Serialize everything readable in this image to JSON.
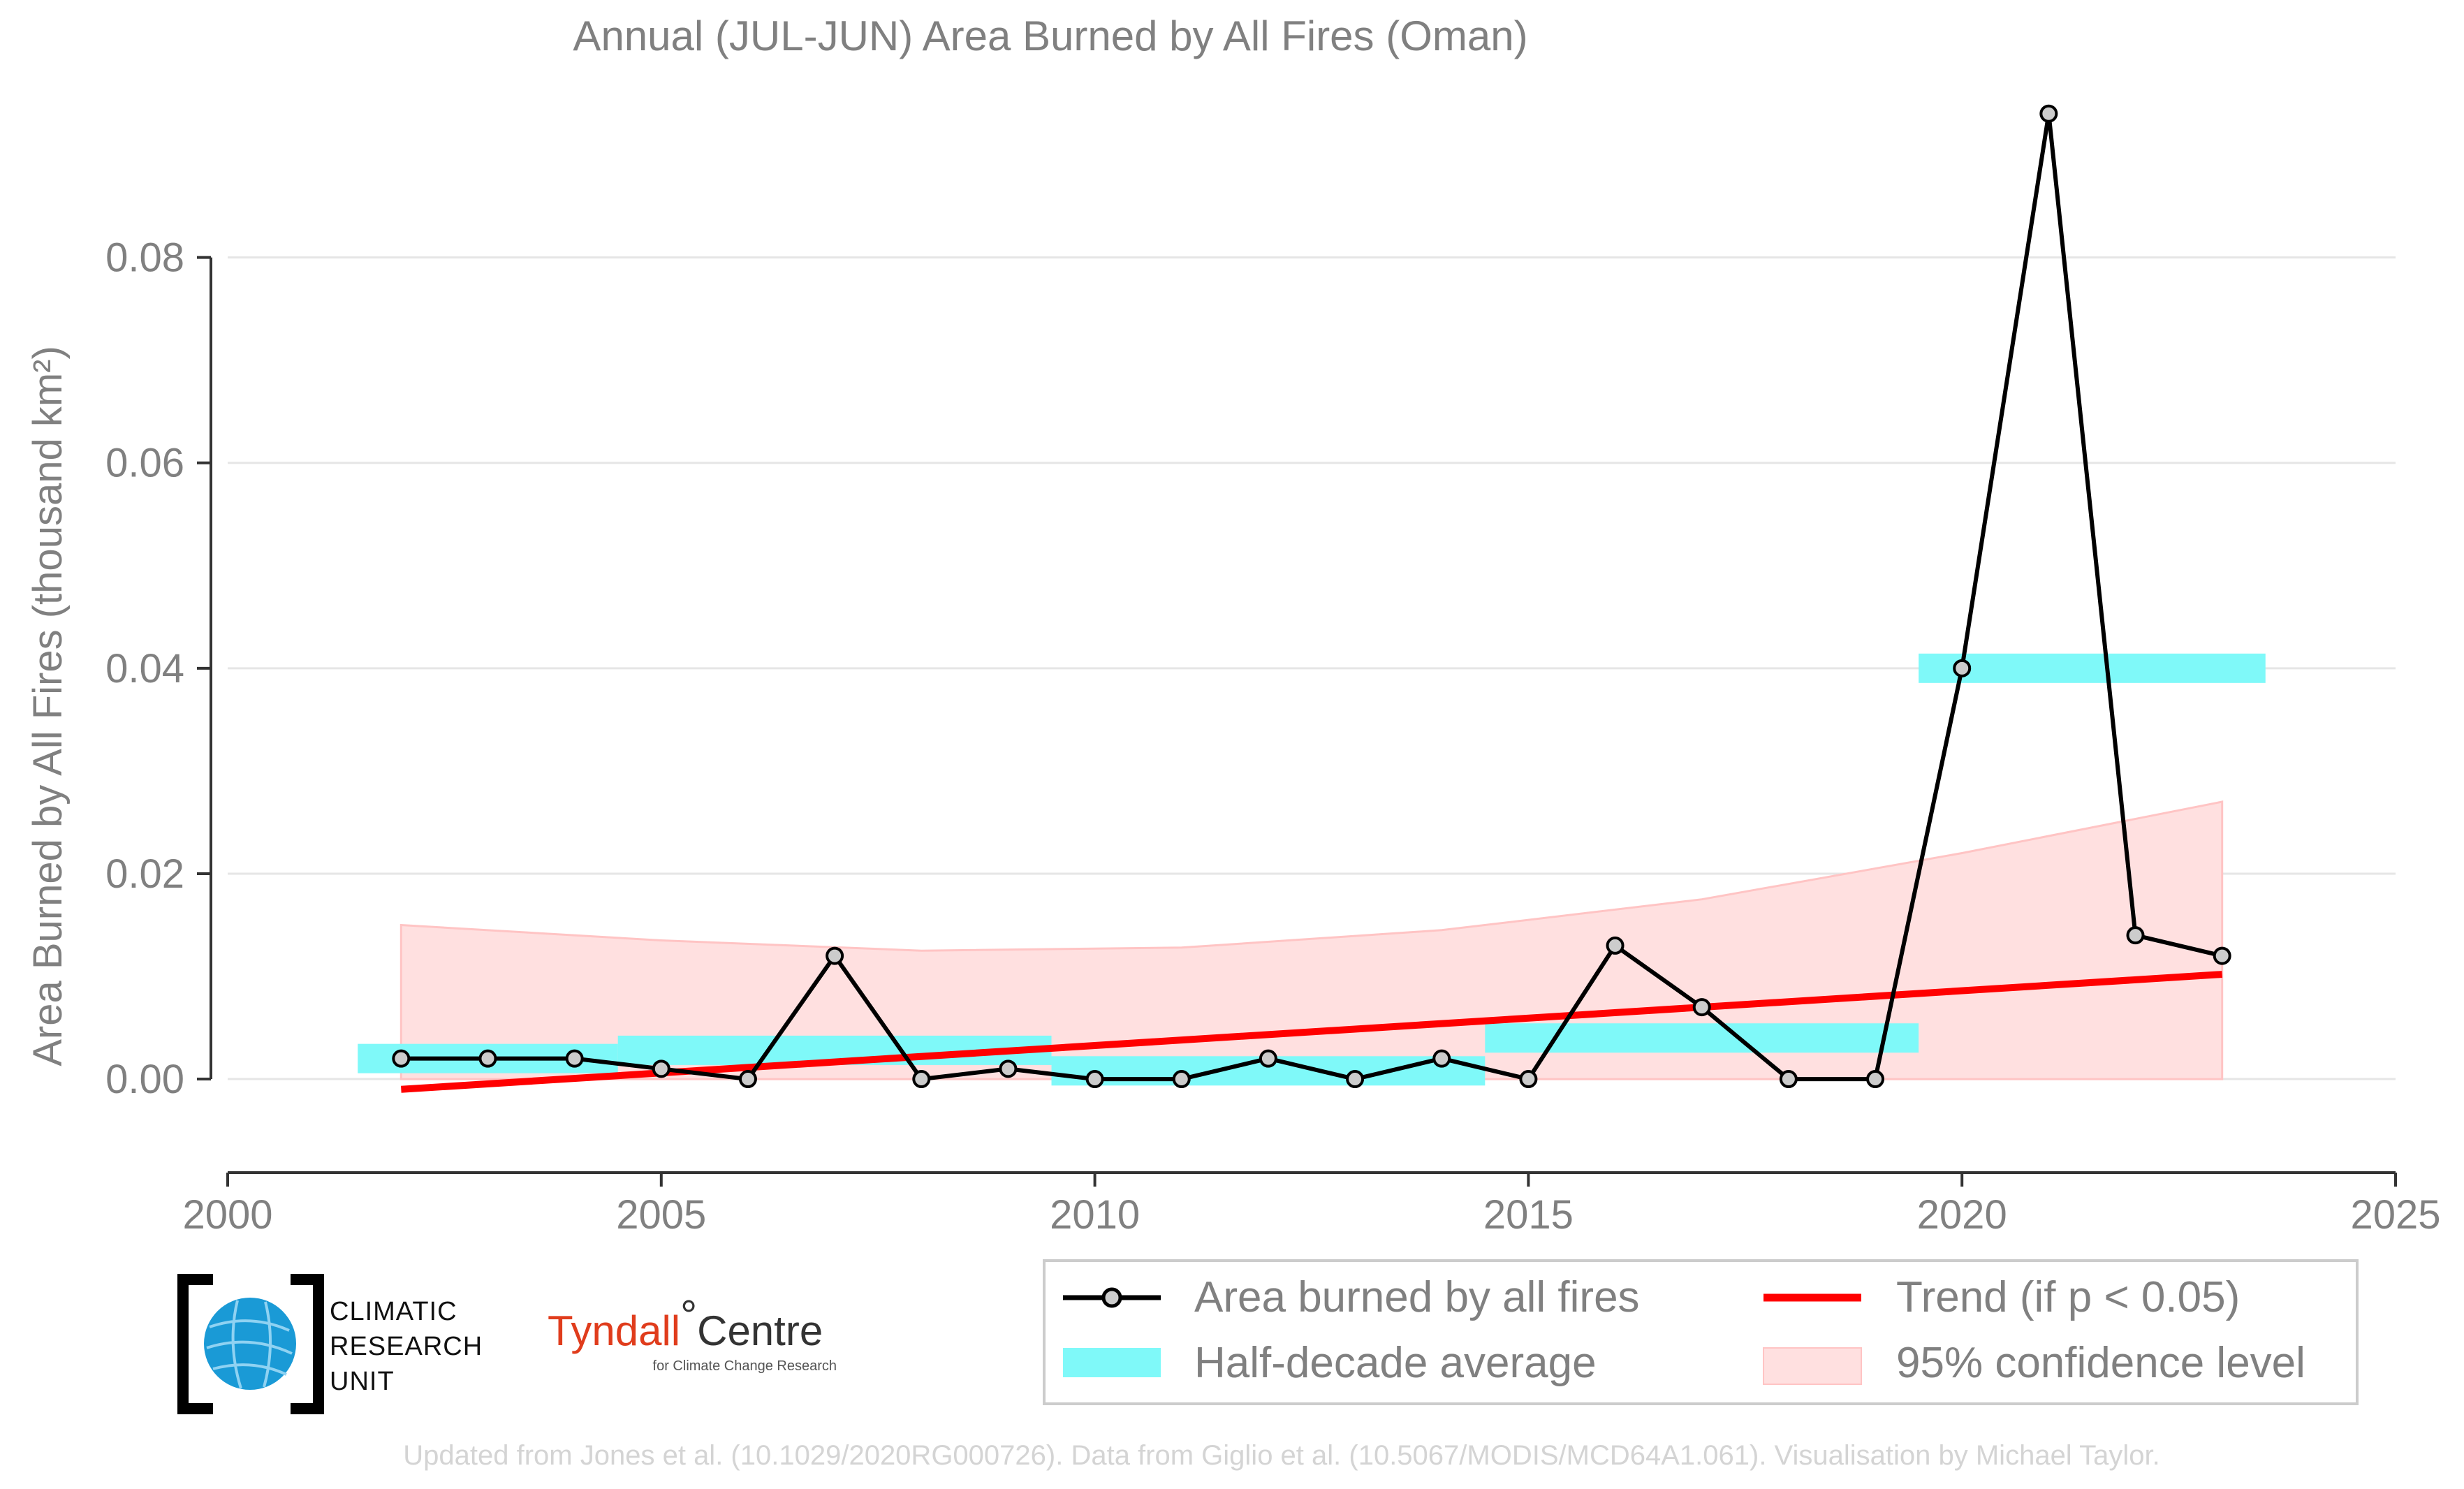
{
  "chart_data": {
    "type": "line",
    "title": "Annual (JUL-JUN) Area Burned by All Fires (Oman)",
    "ylabel": "Area Burned by All Fires (thousand km²)",
    "xlabel": "",
    "xlim": [
      2000,
      2025
    ],
    "ylim": [
      -0.0087,
      0.095
    ],
    "x_ticks": [
      "2000",
      "2005",
      "2010",
      "2015",
      "2020",
      "2025"
    ],
    "y_ticks": [
      "0.00",
      "0.02",
      "0.04",
      "0.06",
      "0.08"
    ],
    "grid": "horizontal",
    "legend_position": "bottom-right",
    "series": [
      {
        "name": "Area burned by all fires",
        "x": [
          2002,
          2003,
          2004,
          2005,
          2006,
          2007,
          2008,
          2009,
          2010,
          2011,
          2012,
          2013,
          2014,
          2015,
          2016,
          2017,
          2018,
          2019,
          2020,
          2021,
          2022,
          2023
        ],
        "y": [
          0.002,
          0.002,
          0.002,
          0.001,
          0.0,
          0.012,
          0.0,
          0.001,
          0.0,
          0.0,
          0.002,
          0.0,
          0.002,
          0.0,
          0.013,
          0.007,
          0.0,
          0.0,
          0.04,
          0.094,
          0.014,
          0.012
        ],
        "color": "#000000"
      }
    ],
    "half_decade_average": {
      "name": "Half-decade average",
      "color": "#7ff9f9",
      "segments": [
        {
          "x_start": 2001.5,
          "x_end": 2004.5,
          "y": 0.002
        },
        {
          "x_start": 2004.5,
          "x_end": 2009.5,
          "y": 0.0028
        },
        {
          "x_start": 2009.5,
          "x_end": 2014.5,
          "y": 0.0008
        },
        {
          "x_start": 2014.5,
          "x_end": 2019.5,
          "y": 0.004
        },
        {
          "x_start": 2019.5,
          "x_end": 2023.5,
          "y": 0.04
        }
      ]
    },
    "trend": {
      "name": "Trend (if p < 0.05)",
      "color": "#ff0000",
      "x": [
        2002,
        2023
      ],
      "y": [
        -0.001,
        0.0102
      ]
    },
    "confidence": {
      "name": "95% confidence level",
      "color": "#ffd6d6",
      "x": [
        2002,
        2005,
        2008,
        2011,
        2014,
        2017,
        2020,
        2023
      ],
      "upper": [
        0.015,
        0.0135,
        0.0125,
        0.0128,
        0.0145,
        0.0175,
        0.022,
        0.027
      ],
      "lower": [
        0.0,
        0.0,
        0.0,
        0.0,
        0.0,
        0.0,
        0.0,
        0.0
      ]
    }
  },
  "logos": {
    "cru_lines": [
      "CLIMATIC",
      "RESEARCH",
      "UNIT"
    ],
    "tyndall_name": "Tyndall",
    "tyndall_degree": "°",
    "tyndall_centre": "Centre",
    "tyndall_sub": "for Climate Change Research"
  },
  "footer": "Updated from Jones et al. (10.1029/2020RG000726). Data from Giglio et al. (10.5067/MODIS/MCD64A1.061). Visualisation by Michael Taylor."
}
